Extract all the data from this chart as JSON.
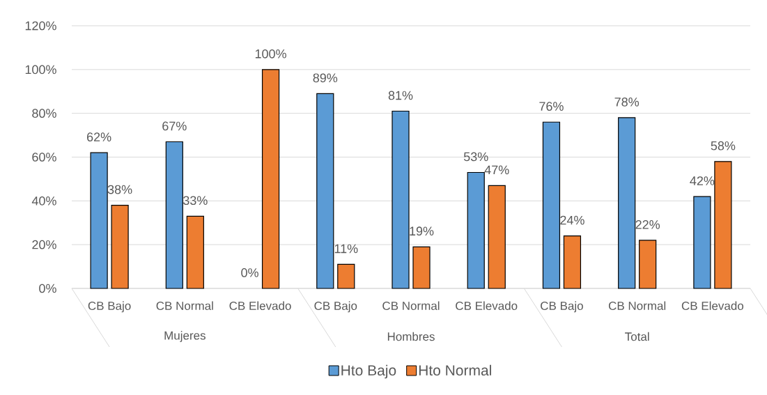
{
  "chart_data": {
    "type": "bar",
    "categories": [
      "CB Bajo",
      "CB Normal",
      "CB Elevado",
      "CB Bajo",
      "CB Normal",
      "CB Elevado",
      "CB Bajo",
      "CB Normal",
      "CB Elevado"
    ],
    "annotations": [
      "Mujeres",
      "Hombres",
      "Total"
    ],
    "series": [
      {
        "name": "Hto Bajo",
        "color": "#5b9bd5",
        "values": [
          62,
          67,
          0,
          89,
          81,
          53,
          76,
          78,
          42
        ],
        "value_labels": [
          "62%",
          "67%",
          "0%",
          "89%",
          "81%",
          "53%",
          "76%",
          "78%",
          "42%"
        ]
      },
      {
        "name": "Hto Normal",
        "color": "#ed7d31",
        "values": [
          38,
          33,
          100,
          11,
          19,
          47,
          24,
          22,
          58
        ],
        "value_labels": [
          "38%",
          "33%",
          "100%",
          "11%",
          "19%",
          "47%",
          "24%",
          "22%",
          "58%"
        ]
      }
    ],
    "ylim": [
      0,
      120
    ],
    "yticks": [
      {
        "value": 0,
        "label": "0%"
      },
      {
        "value": 20,
        "label": "20%"
      },
      {
        "value": 40,
        "label": "40%"
      },
      {
        "value": 60,
        "label": "60%"
      },
      {
        "value": 80,
        "label": "80%"
      },
      {
        "value": 100,
        "label": "100%"
      },
      {
        "value": 120,
        "label": "120%"
      }
    ],
    "grid": "y",
    "legend": "bottom"
  }
}
